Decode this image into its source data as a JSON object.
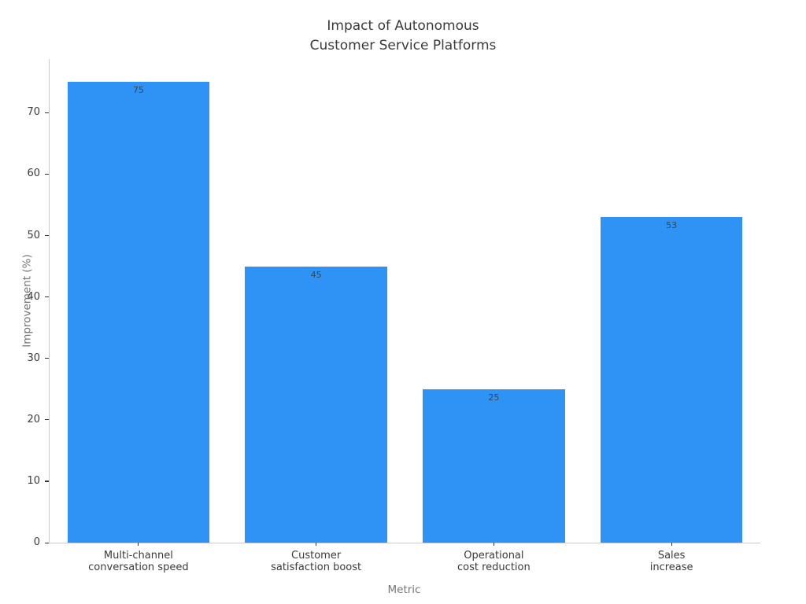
{
  "chart_data": {
    "type": "bar",
    "title": "Impact of Autonomous\nCustomer Service Platforms",
    "title_lines": [
      "Impact of Autonomous",
      "Customer Service Platforms"
    ],
    "categories": [
      "Multi-channel\nconversation speed",
      "Customer\nsatisfaction boost",
      "Operational\ncost reduction",
      "Sales\nincrease"
    ],
    "category_lines": [
      [
        "Multi-channel",
        "conversation speed"
      ],
      [
        "Customer",
        "satisfaction boost"
      ],
      [
        "Operational",
        "cost reduction"
      ],
      [
        "Sales",
        "increase"
      ]
    ],
    "values": [
      75,
      45,
      25,
      53
    ],
    "bar_labels": [
      "75",
      "45",
      "25",
      "53"
    ],
    "xlabel": "Metric",
    "ylabel": "Improvement (%)",
    "y_ticks": [
      0,
      10,
      20,
      30,
      40,
      50,
      60,
      70
    ],
    "ylim": [
      0,
      78.75
    ],
    "grid": false,
    "legend": null,
    "bar_width_fraction": 0.8,
    "colors": {
      "bar": "#2E93F5",
      "spine": "#cccccc",
      "tick": "#333333",
      "tick_label": "#3a3a3a",
      "axis_label": "#757575",
      "title": "#3a3a3a",
      "value_label": "#37474f",
      "background": "#ffffff"
    }
  }
}
